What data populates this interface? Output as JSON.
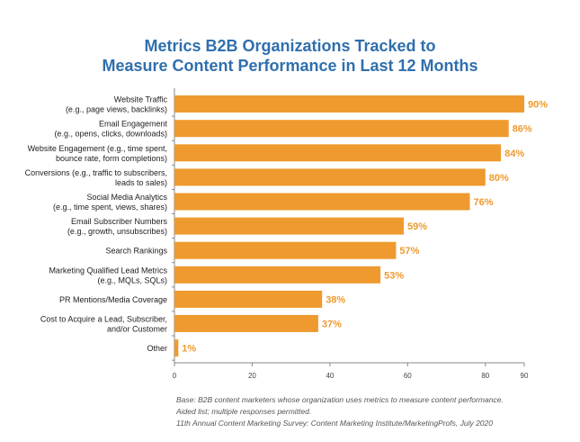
{
  "title_lines": [
    "Metrics B2B Organizations Tracked to",
    "Measure Content Performance in Last 12 Months"
  ],
  "chart_data": {
    "type": "bar",
    "orientation": "horizontal",
    "categories": [
      [
        "Website Traffic",
        "(e.g., page views, backlinks)"
      ],
      [
        "Email Engagement",
        "(e.g., opens, clicks, downloads)"
      ],
      [
        "Website Engagement (e.g., time spent,",
        "bounce rate, form completions)"
      ],
      [
        "Conversions (e.g., traffic to subscribers,",
        "leads to sales)"
      ],
      [
        "Social Media Analytics",
        "(e.g., time spent, views, shares)"
      ],
      [
        "Email Subscriber Numbers",
        "(e.g., growth, unsubscribes)"
      ],
      [
        "Search Rankings"
      ],
      [
        "Marketing Qualified Lead Metrics",
        "(e.g., MQLs, SQLs)"
      ],
      [
        "PR Mentions/Media Coverage"
      ],
      [
        "Cost to Acquire a Lead, Subscriber,",
        "and/or Customer"
      ],
      [
        "Other"
      ]
    ],
    "values": [
      90,
      86,
      84,
      80,
      76,
      59,
      57,
      53,
      38,
      37,
      1
    ],
    "value_labels": [
      "90%",
      "86%",
      "84%",
      "80%",
      "76%",
      "59%",
      "57%",
      "53%",
      "38%",
      "37%",
      "1%"
    ],
    "xlim": [
      0,
      90
    ],
    "xticks": [
      0,
      20,
      40,
      60,
      80,
      90
    ],
    "grid": false,
    "bar_color": "#ee9a2e",
    "label_color": "#ee9a2e"
  },
  "footnote_lines": [
    "Base: B2B content marketers whose organization uses metrics to measure content performance.",
    "Aided list; multiple responses permitted.",
    "11th Annual Content Marketing Survey: Content Marketing Institute/MarketingProfs, July 2020"
  ]
}
